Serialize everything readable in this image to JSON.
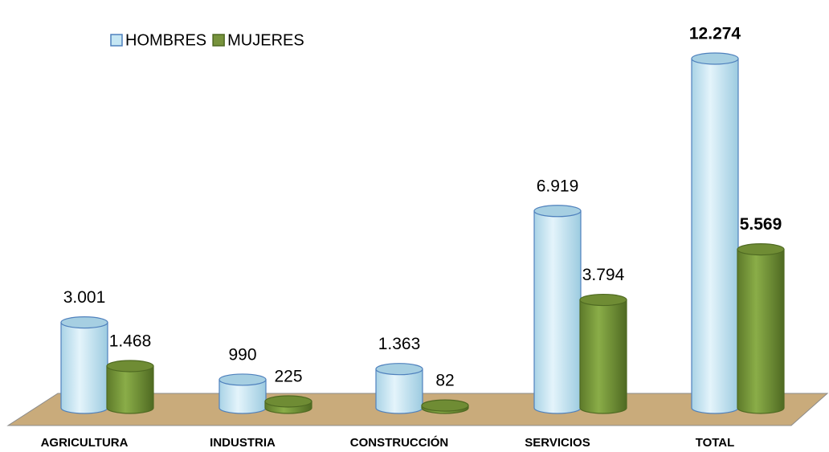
{
  "chart_data": {
    "type": "cylinder-bar",
    "categories": [
      "AGRICULTURA",
      "INDUSTRIA",
      "CONSTRUCCIÓN",
      "SERVICIOS",
      "TOTAL"
    ],
    "series": [
      {
        "name": "HOMBRES",
        "color": "#c5e6f3",
        "values": [
          3001,
          990,
          1363,
          6919,
          12274
        ],
        "value_labels": [
          "3.001",
          "990",
          "1.363",
          "6.919",
          "12.274"
        ]
      },
      {
        "name": "MUJERES",
        "color": "#77933c",
        "values": [
          1468,
          225,
          82,
          3794,
          5569
        ],
        "value_labels": [
          "1.468",
          "225",
          "82",
          "3.794",
          "5.569"
        ]
      }
    ],
    "legend": "top-left"
  }
}
